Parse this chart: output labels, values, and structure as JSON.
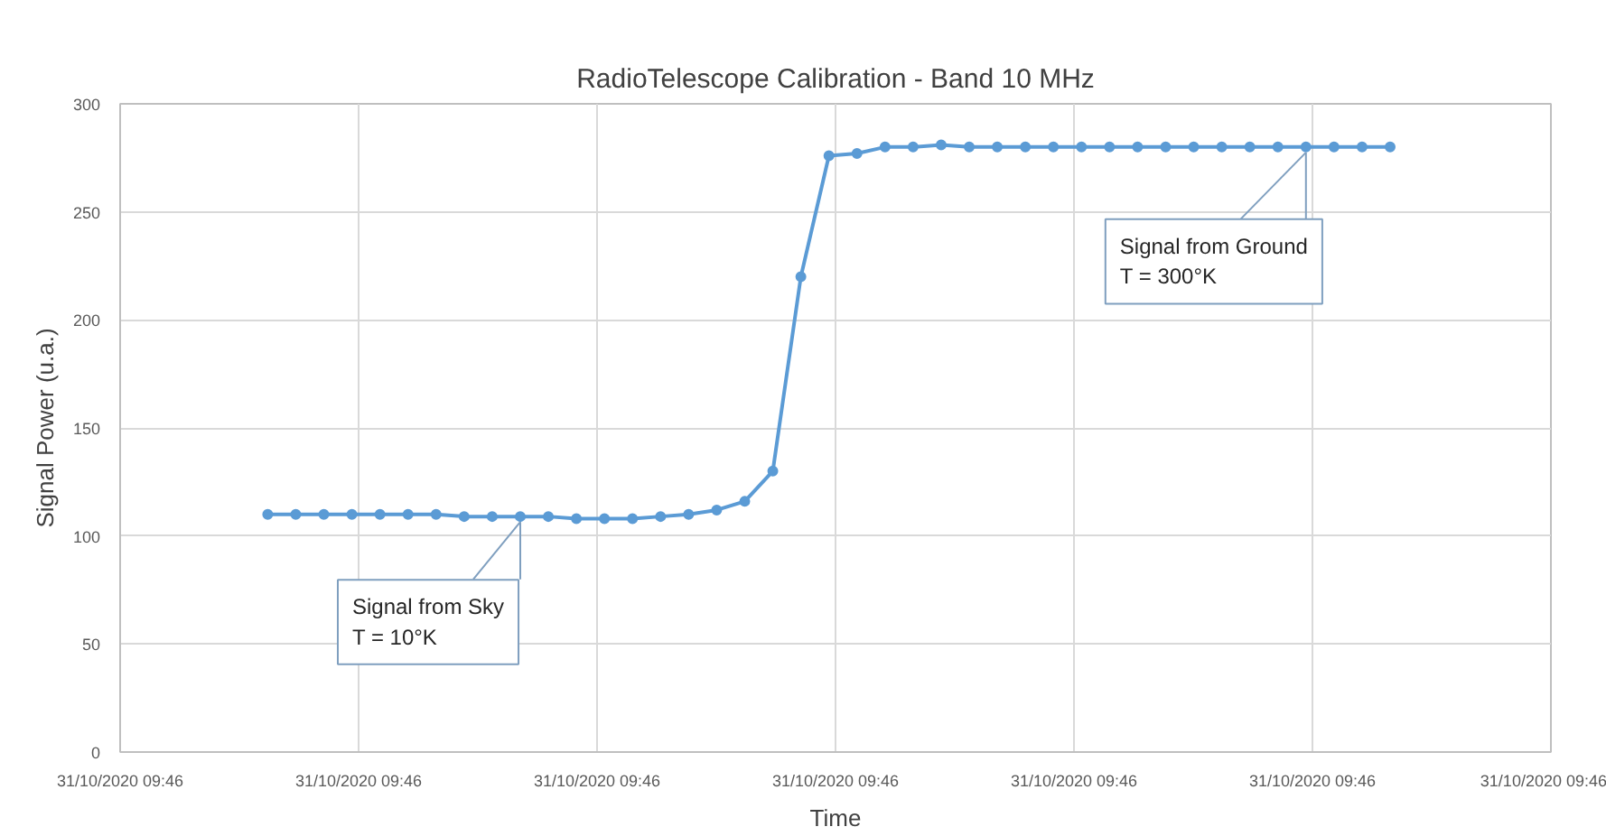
{
  "chart_data": {
    "type": "line",
    "title": "RadioTelescope Calibration - Band 10 MHz",
    "xlabel": "Time",
    "ylabel": "Signal Power (u.a.)",
    "categories": [
      null,
      null,
      null,
      null,
      null,
      null,
      null,
      null,
      null,
      null,
      null,
      null,
      null,
      null,
      null,
      null,
      null,
      null,
      null,
      null,
      null,
      null,
      null,
      null,
      null,
      null,
      null,
      null,
      null,
      null,
      null,
      null,
      null,
      null,
      null,
      null,
      null,
      null,
      null,
      null,
      null
    ],
    "series": [
      {
        "color": "#5b9bd5",
        "values": [
          110,
          110,
          110,
          110,
          110,
          110,
          110,
          109,
          109,
          109,
          109,
          108,
          108,
          108,
          109,
          110,
          112,
          116,
          130,
          220,
          276,
          277,
          280,
          280,
          281,
          280,
          280,
          280,
          280,
          280,
          280,
          280,
          280,
          280,
          280,
          280,
          280,
          280,
          280,
          280,
          280
        ]
      }
    ],
    "ylim": [
      0,
      300
    ],
    "yticks": [
      0,
      50,
      100,
      150,
      200,
      250,
      300
    ],
    "annotations": [
      "Signal from Sky\nT = 10°K",
      "Signal from Ground\nT = 300°K",
      "31/10/2020 09:46",
      "31/10/2020 09:46",
      "31/10/2020 09:46",
      "31/10/2020 09:46",
      "31/10/2020 09:46",
      "31/10/2020 09:46",
      "31/10/2020 09:46"
    ],
    "grid": true,
    "marker": "circle",
    "line_style": "solid"
  }
}
